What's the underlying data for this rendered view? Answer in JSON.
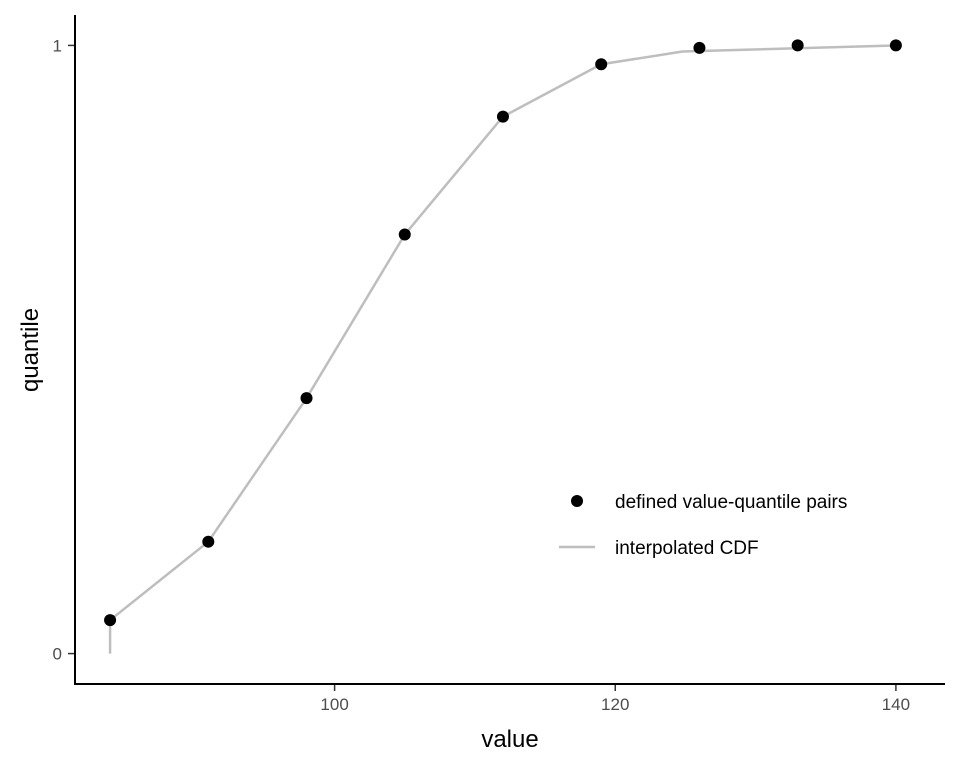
{
  "chart_data": {
    "type": "line",
    "xlabel": "value",
    "ylabel": "quantile",
    "xlim": [
      81.5,
      143.5
    ],
    "ylim": [
      -0.05,
      1.05
    ],
    "x_ticks": [
      100,
      120,
      140
    ],
    "x_tick_labels": [
      "100",
      "120",
      "140"
    ],
    "y_ticks": [
      0,
      1
    ],
    "y_tick_labels": [
      "0",
      "1"
    ],
    "grid": false,
    "legend_position": "bottom-right",
    "series": [
      {
        "name": "defined value-quantile pairs",
        "kind": "points",
        "color": "#000000",
        "x": [
          84,
          91,
          98,
          105,
          112,
          119,
          126,
          133,
          140
        ],
        "y": [
          0.055,
          0.184,
          0.42,
          0.689,
          0.883,
          0.969,
          0.996,
          1.0,
          1.0
        ]
      },
      {
        "name": "interpolated CDF",
        "kind": "line",
        "color": "#bebebe",
        "x": [
          84,
          84,
          91,
          98,
          105,
          112,
          119,
          124.8,
          140
        ],
        "y": [
          0.0,
          0.055,
          0.184,
          0.42,
          0.689,
          0.883,
          0.969,
          0.99,
          1.0
        ]
      }
    ]
  }
}
